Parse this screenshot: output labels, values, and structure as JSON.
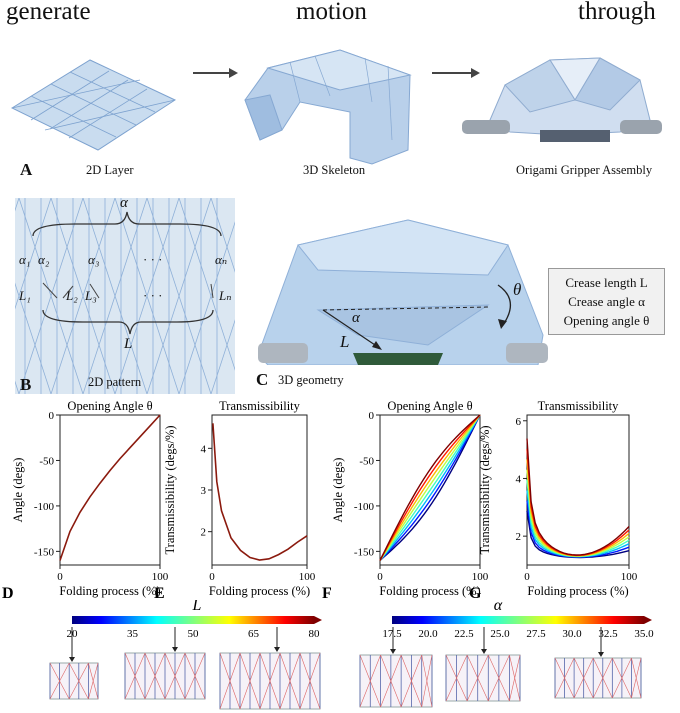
{
  "header": {
    "word1": "generate",
    "word2": "motion",
    "word3": "through"
  },
  "panel_A": {
    "letter": "A",
    "cap1": "2D Layer",
    "cap2": "3D Skeleton",
    "cap3": "Origami Gripper Assembly"
  },
  "panel_B": {
    "letter": "B",
    "caption": "2D pattern",
    "alpha": "α",
    "L": "L",
    "a1": "α₁",
    "a2": "α₂",
    "a3": "α₃",
    "an": "αₙ",
    "L1": "L₁",
    "L2": "L₂",
    "L3": "L₃",
    "Ln": "Lₙ",
    "dots": "· · ·"
  },
  "panel_C": {
    "letter": "C",
    "caption": "3D geometry",
    "alpha": "α",
    "L": "L",
    "theta": "θ",
    "legend": [
      "Crease length L",
      "Crease angle α",
      "Opening angle θ"
    ]
  },
  "colors": {
    "line_dark": "#8b1a0e",
    "pattern_bg": "#dbe7f2",
    "crease_blue": "#6f93c7",
    "crease_red": "#e07070"
  },
  "chart_data": [
    {
      "letter": "D",
      "type": "line",
      "title": "Opening Angle θ",
      "xlabel": "Folding process (%)",
      "ylabel": "Angle (degs)",
      "xlim": [
        0,
        100
      ],
      "ylim": [
        -165,
        0
      ],
      "xticks": [
        0,
        100
      ],
      "yticks": [
        0,
        -50,
        -100,
        -150
      ],
      "series": [
        {
          "x": [
            0,
            10,
            20,
            30,
            40,
            50,
            60,
            70,
            80,
            90,
            100
          ],
          "y": [
            -160,
            -128,
            -107,
            -90,
            -75,
            -61,
            -48,
            -36,
            -24,
            -12,
            0
          ]
        }
      ]
    },
    {
      "letter": "E",
      "type": "line",
      "title": "Transmissibility",
      "xlabel": "Folding process (%)",
      "ylabel": "Transmissibility (degs/%)",
      "xlim": [
        0,
        100
      ],
      "ylim": [
        1.2,
        4.8
      ],
      "xticks": [
        0,
        100
      ],
      "yticks": [
        2,
        3,
        4
      ],
      "series": [
        {
          "x": [
            1,
            5,
            10,
            20,
            30,
            40,
            50,
            60,
            70,
            80,
            90,
            100
          ],
          "y": [
            4.6,
            3.2,
            2.5,
            1.85,
            1.55,
            1.38,
            1.32,
            1.35,
            1.45,
            1.58,
            1.75,
            1.9
          ]
        }
      ]
    },
    {
      "letter": "F",
      "type": "line",
      "title": "Opening Angle θ",
      "xlabel": "Folding process (%)",
      "ylabel": "Angle (degs)",
      "xlim": [
        0,
        100
      ],
      "ylim": [
        -165,
        0
      ],
      "xticks": [
        0,
        100
      ],
      "yticks": [
        0,
        -50,
        -100,
        -150
      ],
      "color_param": [
        17.5,
        20,
        22.5,
        25,
        27.5,
        30,
        32.5,
        35
      ]
    },
    {
      "letter": "G",
      "type": "line",
      "title": "Transmissibility",
      "xlabel": "Folding process (%)",
      "ylabel": "Transmissibility (degs/%)",
      "xlim": [
        0,
        100
      ],
      "ylim": [
        1,
        6.2
      ],
      "xticks": [
        0,
        100
      ],
      "yticks": [
        2,
        4,
        6
      ],
      "color_param": [
        17.5,
        20,
        22.5,
        25,
        27.5,
        30,
        32.5,
        35
      ]
    }
  ],
  "colorbar_L": {
    "label": "L",
    "ticks": [
      "20",
      "35",
      "50",
      "65",
      "80"
    ]
  },
  "colorbar_alpha": {
    "label": "α",
    "ticks": [
      "17.5",
      "20.0",
      "22.5",
      "25.0",
      "27.5",
      "30.0",
      "32.5",
      "35.0"
    ]
  }
}
